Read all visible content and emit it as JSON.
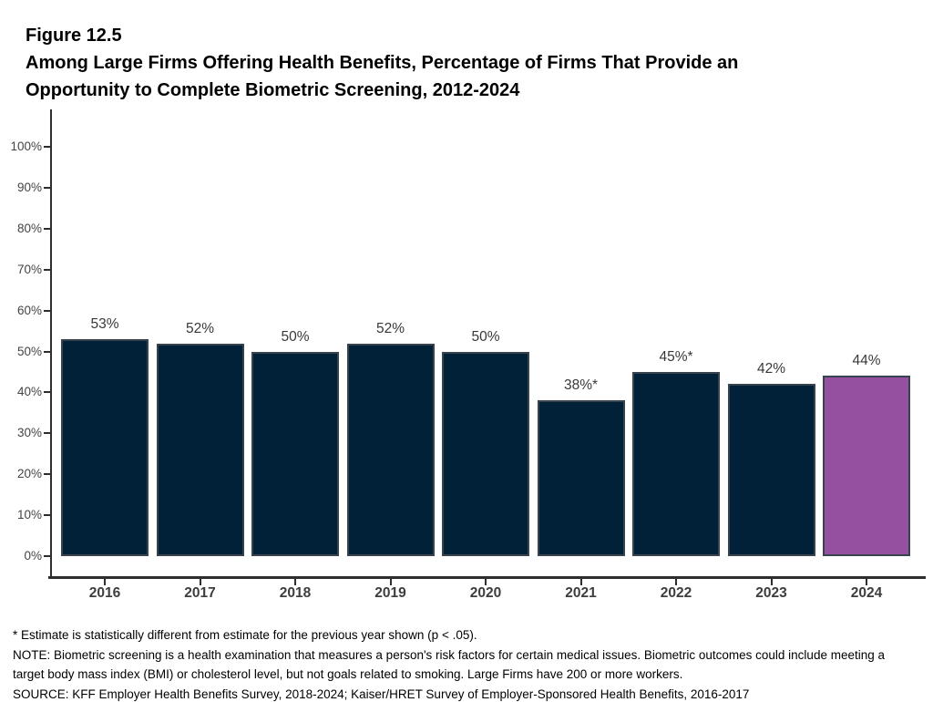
{
  "header": {
    "figure_number": "Figure 12.5",
    "title": "Among Large Firms Offering Health Benefits, Percentage of Firms That Provide an Opportunity to Complete Biometric Screening, 2012-2024"
  },
  "chart_data": {
    "type": "bar",
    "title": "Among Large Firms Offering Health Benefits, Percentage of Firms That Provide an Opportunity to Complete Biometric Screening, 2012-2024",
    "categories": [
      "2016",
      "2017",
      "2018",
      "2019",
      "2020",
      "2021",
      "2022",
      "2023",
      "2024"
    ],
    "values": [
      53,
      52,
      50,
      52,
      50,
      38,
      45,
      42,
      44
    ],
    "bar_labels": [
      "53%",
      "52%",
      "50%",
      "52%",
      "50%",
      "38%*",
      "45%*",
      "42%",
      "44%"
    ],
    "xlabel": "",
    "ylabel": "",
    "ylim": [
      0,
      100
    ],
    "ytick_step": 10,
    "ytick_labels": [
      "0%",
      "10%",
      "20%",
      "30%",
      "40%",
      "50%",
      "60%",
      "70%",
      "80%",
      "90%",
      "100%"
    ],
    "grid": false,
    "legend": "none",
    "bar_color": "#012139",
    "highlight_index": 8,
    "highlight_color": "#95519F",
    "bar_border_color": "#39434d",
    "axis_color": "#2e2e2e"
  },
  "footnotes": {
    "asterisk": "* Estimate is statistically different from estimate for the previous year shown (p < .05).",
    "note": "NOTE: Biometric screening is a health examination that measures a person's risk factors for certain medical issues. Biometric outcomes could include meeting a target body mass index (BMI) or cholesterol level, but not goals related to smoking. Large Firms have 200 or more workers.",
    "source": "SOURCE: KFF Employer Health Benefits Survey, 2018-2024; Kaiser/HRET Survey of Employer-Sponsored Health Benefits, 2016-2017"
  }
}
